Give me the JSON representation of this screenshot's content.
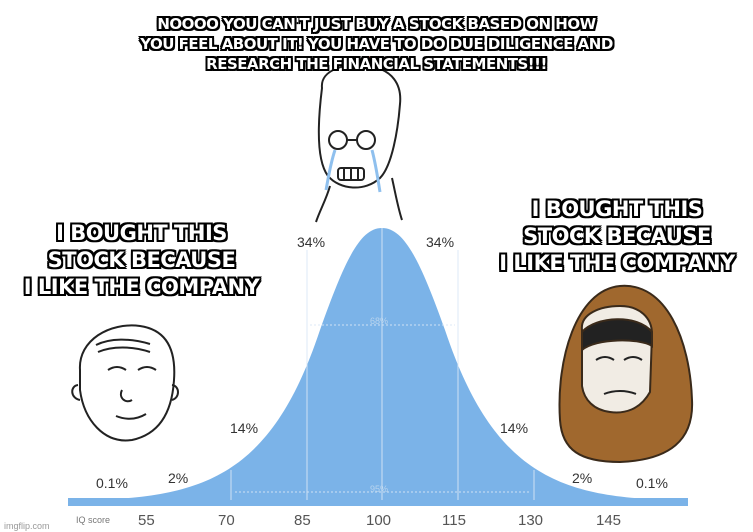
{
  "meme": {
    "top_caption": "NOOOO YOU CAN'T JUST BUY A STOCK BASED ON HOW\nYOU FEEL ABOUT IT! YOU HAVE TO DO DUE DILIGENCE AND\nRESEARCH THE FINANCIAL STATEMENTS!!!",
    "left_caption": "I BOUGHT THIS\nSTOCK BECAUSE\nI LIKE THE COMPANY",
    "right_caption": "I BOUGHT THIS\nSTOCK BECAUSE\nI LIKE THE COMPANY"
  },
  "curve": {
    "percentages": [
      "0.1%",
      "2%",
      "14%",
      "34%",
      "34%",
      "14%",
      "2%",
      "0.1%"
    ],
    "inner_labels": [
      "68%",
      "95%"
    ],
    "axis_title": "IQ score",
    "scores": [
      "55",
      "70",
      "85",
      "100",
      "115",
      "130",
      "145"
    ],
    "fill_color": "#7bb3e8",
    "bar_color": "#7bb3e8"
  },
  "watermark": "imgflip.com"
}
